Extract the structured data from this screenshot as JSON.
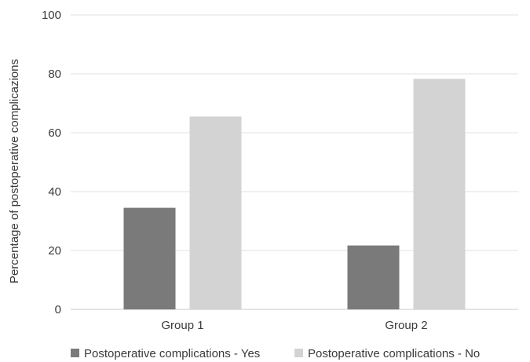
{
  "chart_data": {
    "type": "bar",
    "title": "",
    "xlabel": "",
    "ylabel": "Percentage of postoperative complicazions",
    "ylim": [
      0,
      100
    ],
    "yticks": [
      0,
      20,
      40,
      60,
      80,
      100
    ],
    "grid": true,
    "legend_position": "bottom",
    "categories": [
      "Group 1",
      "Group 2"
    ],
    "series": [
      {
        "name": "Postoperative complications - Yes",
        "color": "#7a7a7a",
        "values": [
          34.5,
          21.7
        ]
      },
      {
        "name": "Postoperative complications - No",
        "color": "#d3d3d3",
        "values": [
          65.5,
          78.3
        ]
      }
    ]
  }
}
